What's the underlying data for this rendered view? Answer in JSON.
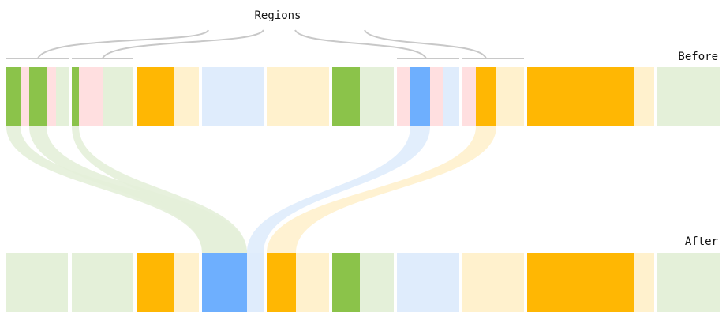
{
  "labels": {
    "title": "Regions",
    "before": "Before",
    "after": "After"
  },
  "colors": {
    "green": "#8bc34a",
    "green_light": "#e4f0d9",
    "pink": "#ffdfe0",
    "orange": "#ffb703",
    "orange_light": "#fff1cd",
    "blue": "#6eaffe",
    "blue_light": "#dfecfc",
    "bracket": "#c8c8c8"
  },
  "before_blocks": [
    [
      "green",
      "pink",
      "green",
      "pink",
      "green_light"
    ],
    [
      "green",
      "pink",
      "green_light"
    ],
    [
      "orange",
      "orange_light"
    ],
    [
      "blue_light"
    ],
    [
      "orange_light"
    ],
    [
      "green",
      "green_light"
    ],
    [
      "pink",
      "blue",
      "pink",
      "blue_light"
    ],
    [
      "pink",
      "orange",
      "orange_light"
    ],
    [
      "orange",
      "orange_light"
    ],
    [
      "green_light"
    ]
  ],
  "after_blocks": [
    [
      "green_light"
    ],
    [
      "green_light"
    ],
    [
      "orange",
      "orange_light"
    ],
    [
      "blue",
      "blue_light"
    ],
    [
      "orange",
      "orange_light"
    ],
    [
      "green",
      "green_light"
    ],
    [
      "blue_light"
    ],
    [
      "orange_light"
    ],
    [
      "orange",
      "orange_light"
    ],
    [
      "green_light"
    ]
  ],
  "flows": [
    {
      "color": "green_light"
    },
    {
      "color": "green_light"
    },
    {
      "color": "green_light"
    },
    {
      "color": "blue_light"
    },
    {
      "color": "orange_light"
    }
  ]
}
